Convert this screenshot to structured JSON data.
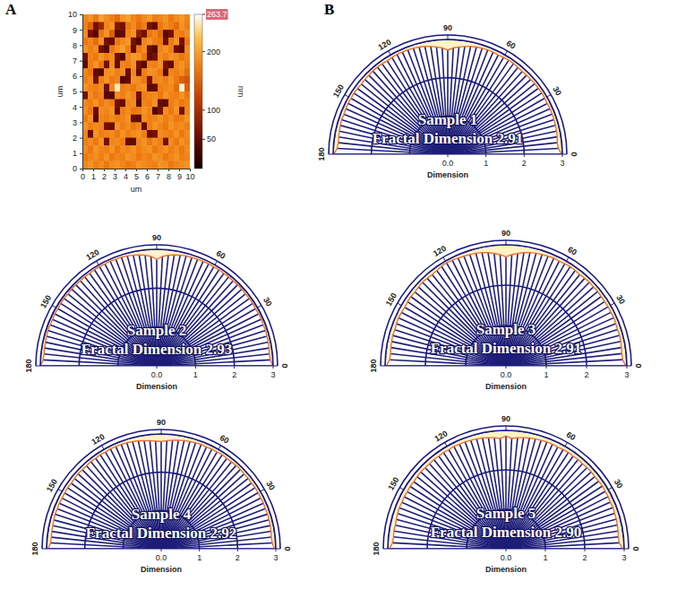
{
  "chart_data": [
    {
      "type": "heatmap",
      "panel": "A",
      "x": [
        0.25,
        0.75,
        1.25,
        1.75,
        2.25,
        2.75,
        3.25,
        3.75,
        4.25,
        4.75,
        5.25,
        5.75,
        6.25,
        6.75,
        7.25,
        7.75,
        8.25,
        8.75,
        9.25,
        9.75
      ],
      "y": [
        9.75,
        9.25,
        8.75,
        8.25,
        7.75,
        7.25,
        6.75,
        6.25,
        5.75,
        5.25,
        4.75,
        4.25,
        3.75,
        3.25,
        2.75,
        2.25,
        1.75,
        1.25,
        0.75,
        0.25
      ],
      "z": [
        [
          180,
          190,
          170,
          200,
          185,
          175,
          160,
          190,
          200,
          180,
          170,
          185,
          195,
          175,
          180,
          190,
          170,
          185,
          195,
          180
        ],
        [
          175,
          150,
          60,
          90,
          180,
          190,
          70,
          60,
          170,
          185,
          160,
          175,
          60,
          50,
          170,
          185,
          175,
          160,
          190,
          175
        ],
        [
          185,
          60,
          40,
          170,
          190,
          150,
          40,
          50,
          180,
          190,
          80,
          60,
          170,
          180,
          160,
          45,
          60,
          180,
          175,
          185
        ],
        [
          170,
          180,
          160,
          190,
          60,
          50,
          170,
          185,
          195,
          60,
          40,
          180,
          190,
          175,
          170,
          55,
          170,
          190,
          60,
          170
        ],
        [
          190,
          175,
          185,
          60,
          40,
          170,
          190,
          200,
          175,
          50,
          170,
          185,
          55,
          40,
          180,
          190,
          175,
          55,
          45,
          185
        ],
        [
          60,
          180,
          170,
          190,
          175,
          185,
          60,
          40,
          180,
          195,
          190,
          170,
          50,
          60,
          185,
          175,
          190,
          185,
          170,
          180
        ],
        [
          45,
          175,
          190,
          170,
          60,
          185,
          50,
          180,
          175,
          190,
          60,
          45,
          180,
          175,
          190,
          60,
          50,
          180,
          190,
          175
        ],
        [
          180,
          170,
          50,
          40,
          185,
          190,
          175,
          185,
          55,
          180,
          50,
          175,
          190,
          185,
          170,
          45,
          180,
          175,
          185,
          160
        ],
        [
          175,
          185,
          60,
          175,
          190,
          170,
          180,
          40,
          50,
          190,
          185,
          170,
          60,
          180,
          185,
          175,
          190,
          170,
          150,
          140
        ],
        [
          190,
          180,
          175,
          185,
          55,
          180,
          250,
          175,
          180,
          170,
          185,
          190,
          45,
          50,
          175,
          180,
          185,
          160,
          255,
          150
        ],
        [
          60,
          185,
          170,
          180,
          45,
          40,
          185,
          175,
          190,
          180,
          60,
          175,
          180,
          185,
          170,
          190,
          180,
          175,
          190,
          170
        ],
        [
          180,
          175,
          190,
          170,
          185,
          175,
          60,
          50,
          180,
          185,
          40,
          180,
          175,
          190,
          50,
          45,
          175,
          185,
          170,
          180
        ],
        [
          185,
          170,
          55,
          185,
          180,
          190,
          50,
          175,
          185,
          170,
          175,
          190,
          180,
          40,
          60,
          185,
          170,
          190,
          60,
          180
        ],
        [
          170,
          190,
          40,
          180,
          175,
          185,
          175,
          180,
          190,
          55,
          45,
          185,
          175,
          180,
          190,
          175,
          185,
          170,
          175,
          190
        ],
        [
          190,
          175,
          185,
          180,
          60,
          55,
          190,
          175,
          185,
          170,
          180,
          50,
          175,
          190,
          180,
          170,
          190,
          180,
          185,
          175
        ],
        [
          180,
          55,
          190,
          175,
          180,
          185,
          170,
          190,
          175,
          185,
          190,
          175,
          55,
          60,
          185,
          180,
          175,
          190,
          170,
          185
        ],
        [
          175,
          185,
          170,
          190,
          60,
          180,
          185,
          175,
          50,
          45,
          180,
          190,
          170,
          185,
          175,
          60,
          185,
          170,
          190,
          180
        ],
        [
          185,
          170,
          190,
          180,
          175,
          190,
          170,
          185,
          180,
          190,
          175,
          185,
          190,
          170,
          180,
          190,
          175,
          185,
          170,
          185
        ],
        [
          170,
          180,
          185,
          175,
          190,
          170,
          180,
          175,
          190,
          185,
          170,
          180,
          175,
          190,
          185,
          170,
          180,
          190,
          175,
          180
        ],
        [
          180,
          190,
          175,
          185,
          170,
          185,
          190,
          180,
          170,
          175,
          190,
          185,
          180,
          175,
          190,
          185,
          170,
          180,
          185,
          190
        ]
      ],
      "xlim": [
        0,
        10
      ],
      "ylim": [
        0,
        10
      ],
      "xticks": [
        0,
        1,
        2,
        3,
        4,
        5,
        6,
        7,
        8,
        9,
        10
      ],
      "yticks": [
        0,
        1,
        2,
        3,
        4,
        5,
        6,
        7,
        8,
        9,
        10
      ],
      "xlabel": "um",
      "ylabel": "um",
      "colorbar_range": [
        0,
        263.7
      ],
      "colorbar_ticks": [
        50,
        100,
        200,
        263.7
      ],
      "colorbar_label": "nm"
    },
    {
      "type": "polar",
      "panel": "B",
      "title": "Sample 1",
      "annotation": "Fractal Dimension 2.91",
      "color": "#1f1f7a",
      "grid": true,
      "x": [
        0,
        3,
        6,
        9,
        12,
        15,
        18,
        21,
        24,
        27,
        30,
        33,
        36,
        39,
        42,
        45,
        48,
        51,
        54,
        57,
        60,
        63,
        66,
        69,
        72,
        75,
        78,
        81,
        84,
        87,
        90,
        93,
        96,
        99,
        102,
        105,
        108,
        111,
        114,
        117,
        120,
        123,
        126,
        129,
        132,
        135,
        138,
        141,
        144,
        147,
        150,
        153,
        156,
        159,
        162,
        165,
        168,
        171,
        174,
        177,
        180
      ],
      "values": [
        2.98,
        2.9,
        2.88,
        2.9,
        2.91,
        2.92,
        2.92,
        2.93,
        2.93,
        2.92,
        2.93,
        2.94,
        2.93,
        2.93,
        2.92,
        2.92,
        2.91,
        2.92,
        2.93,
        2.93,
        2.92,
        2.91,
        2.92,
        2.92,
        2.91,
        2.9,
        2.88,
        2.85,
        2.82,
        2.78,
        2.72,
        2.78,
        2.82,
        2.85,
        2.88,
        2.9,
        2.91,
        2.92,
        2.92,
        2.93,
        2.92,
        2.91,
        2.92,
        2.93,
        2.93,
        2.92,
        2.92,
        2.91,
        2.92,
        2.93,
        2.92,
        2.93,
        2.92,
        2.91,
        2.92,
        2.91,
        2.9,
        2.89,
        2.88,
        2.9,
        2.98
      ],
      "xlim": [
        0,
        180
      ],
      "xticks": [
        0,
        30,
        60,
        90,
        120,
        150,
        180
      ],
      "ylim": [
        0,
        3
      ],
      "yticks": [
        {
          "value": 0,
          "label": "0.0"
        },
        1,
        2,
        3
      ],
      "ylabel": "Dimension"
    },
    {
      "type": "polar",
      "title": "Sample 2",
      "annotation": "Fractal Dimension 2.93",
      "color": "#1f1f7a",
      "grid": true,
      "x": [
        0,
        3,
        6,
        9,
        12,
        15,
        18,
        21,
        24,
        27,
        30,
        33,
        36,
        39,
        42,
        45,
        48,
        51,
        54,
        57,
        60,
        63,
        66,
        69,
        72,
        75,
        78,
        81,
        84,
        87,
        90,
        93,
        96,
        99,
        102,
        105,
        108,
        111,
        114,
        117,
        120,
        123,
        126,
        129,
        132,
        135,
        138,
        141,
        144,
        147,
        150,
        153,
        156,
        159,
        162,
        165,
        168,
        171,
        174,
        177,
        180
      ],
      "values": [
        2.99,
        2.93,
        2.92,
        2.93,
        2.94,
        2.94,
        2.95,
        2.94,
        2.95,
        2.95,
        2.94,
        2.95,
        2.95,
        2.94,
        2.95,
        2.95,
        2.94,
        2.95,
        2.94,
        2.95,
        2.94,
        2.95,
        2.94,
        2.94,
        2.93,
        2.93,
        2.91,
        2.89,
        2.86,
        2.82,
        2.74,
        2.82,
        2.86,
        2.89,
        2.91,
        2.93,
        2.94,
        2.94,
        2.95,
        2.94,
        2.95,
        2.95,
        2.94,
        2.95,
        2.94,
        2.95,
        2.95,
        2.94,
        2.95,
        2.95,
        2.94,
        2.95,
        2.94,
        2.94,
        2.95,
        2.94,
        2.93,
        2.93,
        2.92,
        2.93,
        2.99
      ],
      "xlim": [
        0,
        180
      ],
      "xticks": [
        0,
        30,
        60,
        90,
        120,
        150,
        180
      ],
      "ylim": [
        0,
        3
      ],
      "yticks": [
        {
          "value": 0,
          "label": "0.0"
        },
        1,
        2,
        3
      ],
      "ylabel": "Dimension"
    },
    {
      "type": "polar",
      "title": "Sample 3",
      "annotation": "Fractal Dimension 2.91",
      "color": "#1f1f7a",
      "grid": true,
      "x": [
        0,
        3,
        6,
        9,
        12,
        15,
        18,
        21,
        24,
        27,
        30,
        33,
        36,
        39,
        42,
        45,
        48,
        51,
        54,
        57,
        60,
        63,
        66,
        69,
        72,
        75,
        78,
        81,
        84,
        87,
        90,
        93,
        96,
        99,
        102,
        105,
        108,
        111,
        114,
        117,
        120,
        123,
        126,
        129,
        132,
        135,
        138,
        141,
        144,
        147,
        150,
        153,
        156,
        159,
        162,
        165,
        168,
        171,
        174,
        177,
        180
      ],
      "values": [
        2.97,
        2.9,
        2.89,
        2.9,
        2.91,
        2.92,
        2.91,
        2.92,
        2.93,
        2.92,
        2.93,
        2.92,
        2.92,
        2.93,
        2.92,
        2.93,
        2.92,
        2.91,
        2.92,
        2.93,
        2.92,
        2.91,
        2.92,
        2.91,
        2.9,
        2.89,
        2.87,
        2.84,
        2.8,
        2.76,
        2.7,
        2.76,
        2.8,
        2.84,
        2.87,
        2.89,
        2.9,
        2.91,
        2.92,
        2.94,
        2.95,
        2.94,
        2.92,
        2.91,
        2.92,
        2.93,
        2.92,
        2.91,
        2.92,
        2.91,
        2.9,
        2.91,
        2.92,
        2.91,
        2.9,
        2.91,
        2.9,
        2.89,
        2.88,
        2.89,
        2.97
      ],
      "xlim": [
        0,
        180
      ],
      "xticks": [
        0,
        30,
        60,
        90,
        120,
        150,
        180
      ],
      "ylim": [
        0,
        3
      ],
      "yticks": [
        {
          "value": 0,
          "label": "0.0"
        },
        1,
        2,
        3
      ],
      "ylabel": "Dimension"
    },
    {
      "type": "polar",
      "title": "Sample 4",
      "annotation": "Fractal Dimension 2.92",
      "color": "#1f1f7a",
      "grid": true,
      "x": [
        0,
        3,
        6,
        9,
        12,
        15,
        18,
        21,
        24,
        27,
        30,
        33,
        36,
        39,
        42,
        45,
        48,
        51,
        54,
        57,
        60,
        63,
        66,
        69,
        72,
        75,
        78,
        81,
        84,
        87,
        90,
        93,
        96,
        99,
        102,
        105,
        108,
        111,
        114,
        117,
        120,
        123,
        126,
        129,
        132,
        135,
        138,
        141,
        144,
        147,
        150,
        153,
        156,
        159,
        162,
        165,
        168,
        171,
        174,
        177,
        180
      ],
      "values": [
        2.96,
        2.91,
        2.9,
        2.91,
        2.92,
        2.92,
        2.93,
        2.92,
        2.93,
        2.92,
        2.93,
        2.93,
        2.92,
        2.93,
        2.92,
        2.93,
        2.93,
        2.92,
        2.92,
        2.93,
        2.92,
        2.92,
        2.91,
        2.92,
        2.91,
        2.9,
        2.89,
        2.87,
        2.85,
        2.83,
        2.8,
        2.82,
        2.84,
        2.86,
        2.88,
        2.9,
        2.91,
        2.92,
        2.92,
        2.93,
        2.92,
        2.93,
        2.92,
        2.93,
        2.92,
        2.92,
        2.93,
        2.92,
        2.91,
        2.92,
        2.92,
        2.91,
        2.92,
        2.91,
        2.92,
        2.91,
        2.9,
        2.9,
        2.89,
        2.9,
        2.96
      ],
      "xlim": [
        0,
        180
      ],
      "xticks": [
        0,
        30,
        60,
        90,
        120,
        150,
        180
      ],
      "ylim": [
        0,
        3
      ],
      "yticks": [
        {
          "value": 0,
          "label": "0.0"
        },
        1,
        2,
        3
      ],
      "ylabel": "Dimension"
    },
    {
      "type": "polar",
      "title": "Sample 5",
      "annotation": "Fractal Dimension 2.90",
      "color": "#1f1f7a",
      "grid": true,
      "x": [
        0,
        3,
        6,
        9,
        12,
        15,
        18,
        21,
        24,
        27,
        30,
        33,
        36,
        39,
        42,
        45,
        48,
        51,
        54,
        57,
        60,
        63,
        66,
        69,
        72,
        75,
        78,
        81,
        84,
        87,
        90,
        93,
        96,
        99,
        102,
        105,
        108,
        111,
        114,
        117,
        120,
        123,
        126,
        129,
        132,
        135,
        138,
        141,
        144,
        147,
        150,
        153,
        156,
        159,
        162,
        165,
        168,
        171,
        174,
        177,
        180
      ],
      "values": [
        2.96,
        2.88,
        2.87,
        2.88,
        2.89,
        2.9,
        2.9,
        2.91,
        2.9,
        2.91,
        2.91,
        2.92,
        2.91,
        2.9,
        2.91,
        2.91,
        2.9,
        2.91,
        2.9,
        2.91,
        2.9,
        2.89,
        2.9,
        2.9,
        2.89,
        2.88,
        2.87,
        2.85,
        2.83,
        2.8,
        2.86,
        2.8,
        2.83,
        2.85,
        2.87,
        2.88,
        2.89,
        2.9,
        2.9,
        2.91,
        2.9,
        2.91,
        2.9,
        2.91,
        2.9,
        2.9,
        2.91,
        2.9,
        2.89,
        2.9,
        2.89,
        2.9,
        2.89,
        2.9,
        2.89,
        2.88,
        2.87,
        2.88,
        2.87,
        2.88,
        2.96
      ],
      "xlim": [
        0,
        180
      ],
      "xticks": [
        0,
        30,
        60,
        90,
        120,
        150,
        180
      ],
      "ylim": [
        0,
        3
      ],
      "yticks": [
        {
          "value": 0,
          "label": "0.0"
        },
        1,
        2,
        3
      ],
      "ylabel": "Dimension"
    }
  ]
}
